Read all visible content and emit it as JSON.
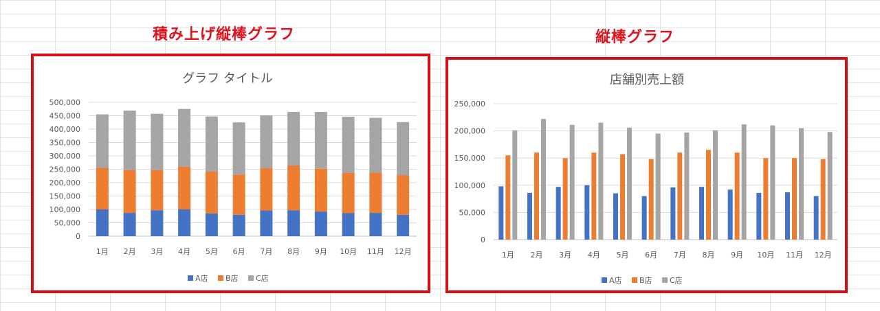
{
  "captions": {
    "stacked": "積み上げ縦棒グラフ",
    "clustered": "縦棒グラフ"
  },
  "colors": {
    "A": "#4472c4",
    "B": "#ed7d31",
    "C": "#a5a5a5"
  },
  "chart_data": [
    {
      "type": "bar",
      "stacked": true,
      "title": "グラフ タイトル",
      "categories": [
        "1月",
        "2月",
        "3月",
        "4月",
        "5月",
        "6月",
        "7月",
        "8月",
        "9月",
        "10月",
        "11月",
        "12月"
      ],
      "series": [
        {
          "name": "A店",
          "values": [
            100000,
            87000,
            97000,
            100000,
            85000,
            80000,
            96000,
            97000,
            92000,
            86000,
            87000,
            80000
          ]
        },
        {
          "name": "B店",
          "values": [
            155000,
            160000,
            150000,
            160000,
            157000,
            150000,
            158000,
            167000,
            160000,
            150000,
            150000,
            148000
          ]
        },
        {
          "name": "C店",
          "values": [
            200000,
            222000,
            210000,
            215000,
            205000,
            195000,
            197000,
            200000,
            212000,
            210000,
            205000,
            198000
          ]
        }
      ],
      "yticks": [
        "500,000",
        "450,000",
        "400,000",
        "350,000",
        "300,000",
        "250,000",
        "200,000",
        "150,000",
        "100,000",
        "50,000",
        "0"
      ],
      "ylim": [
        0,
        500000
      ],
      "grid": true,
      "legend": "bottom"
    },
    {
      "type": "bar",
      "stacked": false,
      "title": "店舗別売上額",
      "categories": [
        "1月",
        "2月",
        "3月",
        "4月",
        "5月",
        "6月",
        "7月",
        "8月",
        "9月",
        "10月",
        "11月",
        "12月"
      ],
      "series": [
        {
          "name": "A店",
          "values": [
            98000,
            86000,
            97000,
            100000,
            85000,
            80000,
            96000,
            97000,
            92000,
            86000,
            87000,
            80000
          ]
        },
        {
          "name": "B店",
          "values": [
            155000,
            160000,
            150000,
            160000,
            157000,
            148000,
            160000,
            165000,
            160000,
            150000,
            150000,
            148000
          ]
        },
        {
          "name": "C店",
          "values": [
            201000,
            222000,
            211000,
            215000,
            206000,
            195000,
            197000,
            201000,
            212000,
            210000,
            205000,
            198000
          ]
        }
      ],
      "yticks": [
        "250,000",
        "200,000",
        "150,000",
        "100,000",
        "50,000",
        "0"
      ],
      "ylim": [
        0,
        250000
      ],
      "grid": true,
      "legend": "bottom"
    }
  ]
}
